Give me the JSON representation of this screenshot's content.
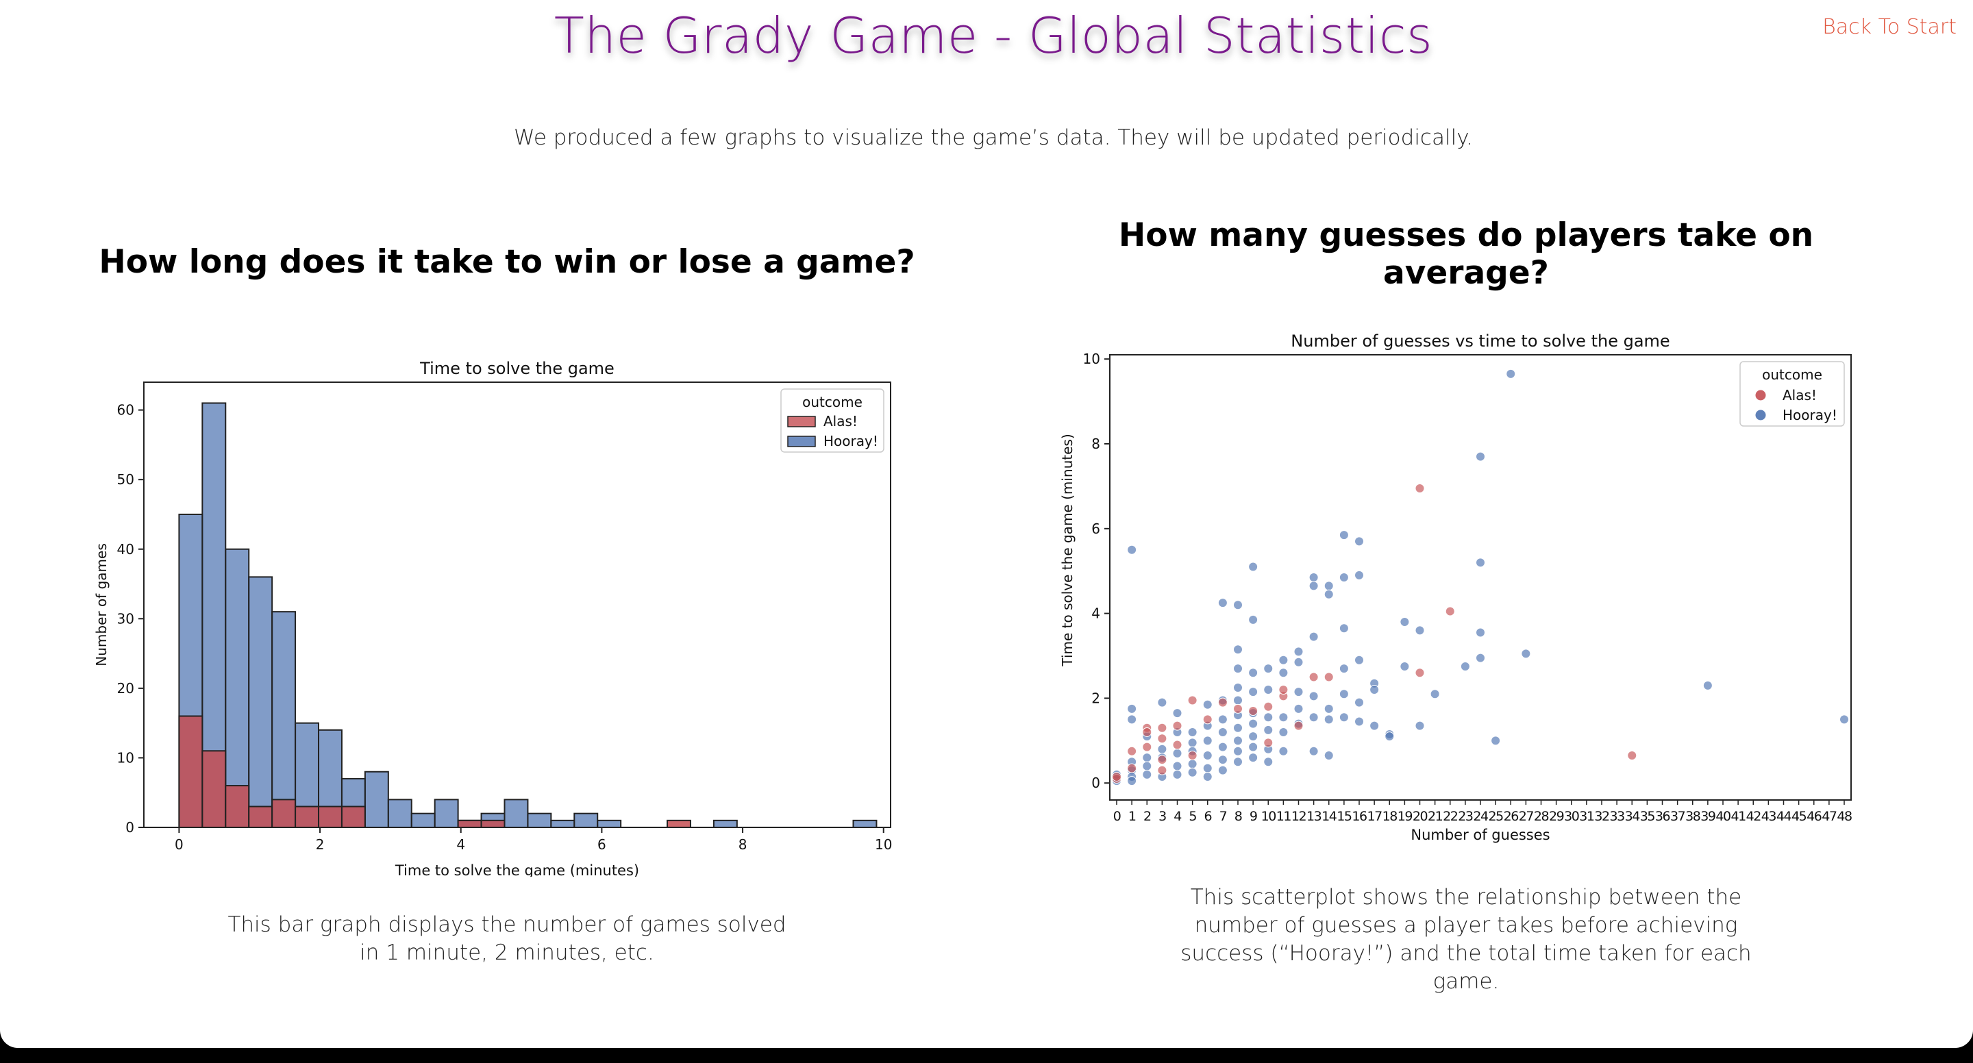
{
  "page": {
    "title": "The Grady Game - Global Statistics",
    "back_link": "Back To Start",
    "subtitle": "We produced a few graphs to visualize the game’s data. They will be updated periodically.",
    "colors": {
      "title": "#7a1a8c",
      "link": "#e0563f",
      "alas": "#c44e52",
      "hooray": "#4c72b0"
    }
  },
  "histogram_section": {
    "heading": "How long does it take to win or lose a game?",
    "caption": "This bar graph displays the number of games solved in 1 minute, 2 minutes, etc."
  },
  "scatter_section": {
    "heading": "How many guesses do players take on average?",
    "caption": "This scatterplot shows the relationship between the number of guesses a player takes before achieving success (“Hooray!”) and the total time taken for each game."
  },
  "chart_data": [
    {
      "type": "bar",
      "title": "Time to solve the game",
      "xlabel": "Time to solve the game (minutes)",
      "ylabel": "Number of games",
      "xlim": [
        -0.5,
        10.1
      ],
      "ylim": [
        0,
        64
      ],
      "xticks": [
        0,
        2,
        4,
        6,
        8,
        10
      ],
      "yticks": [
        0,
        10,
        20,
        30,
        40,
        50,
        60
      ],
      "legend": {
        "title": "outcome",
        "position": "top-right",
        "entries": [
          "Alas!",
          "Hooray!"
        ]
      },
      "bin_edges": [
        0,
        0.33,
        0.66,
        0.99,
        1.32,
        1.65,
        1.98,
        2.31,
        2.64,
        2.97,
        3.3,
        3.63,
        3.96,
        4.29,
        4.62,
        4.95,
        5.28,
        5.61,
        5.94,
        6.27,
        6.6,
        6.93,
        7.26,
        7.59,
        7.92,
        8.25,
        8.58,
        8.91,
        9.24,
        9.57,
        9.9
      ],
      "series": [
        {
          "name": "Hooray!",
          "values": [
            45,
            61,
            40,
            36,
            31,
            15,
            14,
            7,
            8,
            4,
            2,
            4,
            1,
            2,
            4,
            2,
            1,
            2,
            1,
            0,
            0,
            0,
            0,
            1,
            0,
            0,
            0,
            0,
            0,
            1
          ]
        },
        {
          "name": "Alas!",
          "values": [
            16,
            11,
            6,
            3,
            4,
            3,
            3,
            3,
            0,
            0,
            0,
            0,
            1,
            1,
            0,
            0,
            0,
            0,
            0,
            0,
            0,
            1,
            0,
            0,
            0,
            0,
            0,
            0,
            0,
            0
          ]
        }
      ]
    },
    {
      "type": "scatter",
      "title": "Number of guesses vs time to solve the game",
      "xlabel": "Number of guesses",
      "ylabel": "Time to solve the game (minutes)",
      "ylim": [
        -0.4,
        10.1
      ],
      "yticks": [
        0,
        2,
        4,
        6,
        8,
        10
      ],
      "categories": [
        "0",
        "1",
        "2",
        "3",
        "4",
        "5",
        "6",
        "7",
        "8",
        "9",
        "10",
        "11",
        "12",
        "13",
        "14",
        "15",
        "16",
        "17",
        "18",
        "19",
        "20",
        "21",
        "22",
        "23",
        "24",
        "25",
        "26",
        "27",
        "28",
        "29",
        "30",
        "31",
        "32",
        "33",
        "34",
        "35",
        "36",
        "37",
        "38",
        "39",
        "40",
        "41",
        "42",
        "43",
        "44",
        "45",
        "46",
        "47",
        "48"
      ],
      "legend": {
        "title": "outcome",
        "position": "top-right",
        "entries": [
          "Alas!",
          "Hooray!"
        ]
      },
      "series": [
        {
          "name": "Alas!",
          "points": [
            [
              0,
              0.1
            ],
            [
              0,
              0.15
            ],
            [
              1,
              0.75
            ],
            [
              1,
              0.35
            ],
            [
              2,
              1.3
            ],
            [
              2,
              1.2
            ],
            [
              2,
              0.85
            ],
            [
              3,
              1.3
            ],
            [
              3,
              1.05
            ],
            [
              3,
              0.55
            ],
            [
              3,
              0.3
            ],
            [
              4,
              1.35
            ],
            [
              4,
              0.9
            ],
            [
              5,
              1.95
            ],
            [
              5,
              0.65
            ],
            [
              6,
              1.5
            ],
            [
              7,
              1.9
            ],
            [
              8,
              1.75
            ],
            [
              9,
              1.7
            ],
            [
              10,
              1.8
            ],
            [
              10,
              0.95
            ],
            [
              11,
              2.05
            ],
            [
              11,
              2.2
            ],
            [
              12,
              1.35
            ],
            [
              13,
              2.5
            ],
            [
              14,
              2.5
            ],
            [
              20,
              6.95
            ],
            [
              20,
              2.6
            ],
            [
              22,
              4.05
            ],
            [
              34,
              0.65
            ]
          ]
        },
        {
          "name": "Hooray!",
          "points": [
            [
              0,
              0.05
            ],
            [
              0,
              0.2
            ],
            [
              1,
              5.5
            ],
            [
              1,
              1.75
            ],
            [
              1,
              1.5
            ],
            [
              1,
              0.5
            ],
            [
              1,
              0.3
            ],
            [
              1,
              0.15
            ],
            [
              1,
              0.05
            ],
            [
              2,
              1.1
            ],
            [
              2,
              0.6
            ],
            [
              2,
              0.4
            ],
            [
              2,
              0.2
            ],
            [
              3,
              1.9
            ],
            [
              3,
              0.8
            ],
            [
              3,
              0.6
            ],
            [
              3,
              0.15
            ],
            [
              4,
              1.65
            ],
            [
              4,
              1.2
            ],
            [
              4,
              0.7
            ],
            [
              4,
              0.4
            ],
            [
              4,
              0.2
            ],
            [
              5,
              1.2
            ],
            [
              5,
              0.95
            ],
            [
              5,
              0.75
            ],
            [
              5,
              0.45
            ],
            [
              5,
              0.25
            ],
            [
              6,
              1.85
            ],
            [
              6,
              1.35
            ],
            [
              6,
              1.0
            ],
            [
              6,
              0.65
            ],
            [
              6,
              0.35
            ],
            [
              6,
              0.15
            ],
            [
              7,
              4.25
            ],
            [
              7,
              1.95
            ],
            [
              7,
              1.5
            ],
            [
              7,
              1.2
            ],
            [
              7,
              0.85
            ],
            [
              7,
              0.55
            ],
            [
              7,
              0.3
            ],
            [
              8,
              4.2
            ],
            [
              8,
              3.15
            ],
            [
              8,
              2.7
            ],
            [
              8,
              2.25
            ],
            [
              8,
              1.95
            ],
            [
              8,
              1.6
            ],
            [
              8,
              1.3
            ],
            [
              8,
              1.0
            ],
            [
              8,
              0.75
            ],
            [
              8,
              0.5
            ],
            [
              9,
              5.1
            ],
            [
              9,
              3.85
            ],
            [
              9,
              2.6
            ],
            [
              9,
              2.15
            ],
            [
              9,
              1.65
            ],
            [
              9,
              1.4
            ],
            [
              9,
              1.1
            ],
            [
              9,
              0.85
            ],
            [
              9,
              0.6
            ],
            [
              10,
              2.7
            ],
            [
              10,
              2.2
            ],
            [
              10,
              1.55
            ],
            [
              10,
              1.25
            ],
            [
              10,
              0.8
            ],
            [
              10,
              0.5
            ],
            [
              11,
              2.9
            ],
            [
              11,
              2.6
            ],
            [
              11,
              1.55
            ],
            [
              11,
              1.2
            ],
            [
              11,
              0.75
            ],
            [
              12,
              3.1
            ],
            [
              12,
              2.85
            ],
            [
              12,
              2.15
            ],
            [
              12,
              1.75
            ],
            [
              12,
              1.4
            ],
            [
              13,
              4.85
            ],
            [
              13,
              4.65
            ],
            [
              13,
              3.45
            ],
            [
              13,
              2.05
            ],
            [
              13,
              1.55
            ],
            [
              13,
              0.75
            ],
            [
              14,
              4.65
            ],
            [
              14,
              4.45
            ],
            [
              14,
              1.75
            ],
            [
              14,
              1.5
            ],
            [
              14,
              0.65
            ],
            [
              15,
              5.85
            ],
            [
              15,
              4.85
            ],
            [
              15,
              3.65
            ],
            [
              15,
              2.7
            ],
            [
              15,
              2.1
            ],
            [
              15,
              1.55
            ],
            [
              16,
              5.7
            ],
            [
              16,
              4.9
            ],
            [
              16,
              2.9
            ],
            [
              16,
              1.9
            ],
            [
              16,
              1.45
            ],
            [
              17,
              2.35
            ],
            [
              17,
              2.2
            ],
            [
              17,
              1.35
            ],
            [
              18,
              1.15
            ],
            [
              18,
              1.1
            ],
            [
              19,
              3.8
            ],
            [
              19,
              2.75
            ],
            [
              20,
              3.6
            ],
            [
              20,
              1.35
            ],
            [
              21,
              2.1
            ],
            [
              23,
              2.75
            ],
            [
              24,
              7.7
            ],
            [
              24,
              5.2
            ],
            [
              24,
              3.55
            ],
            [
              24,
              2.95
            ],
            [
              25,
              1.0
            ],
            [
              26,
              9.65
            ],
            [
              27,
              3.05
            ],
            [
              39,
              2.3
            ],
            [
              48,
              1.5
            ]
          ]
        }
      ]
    }
  ]
}
